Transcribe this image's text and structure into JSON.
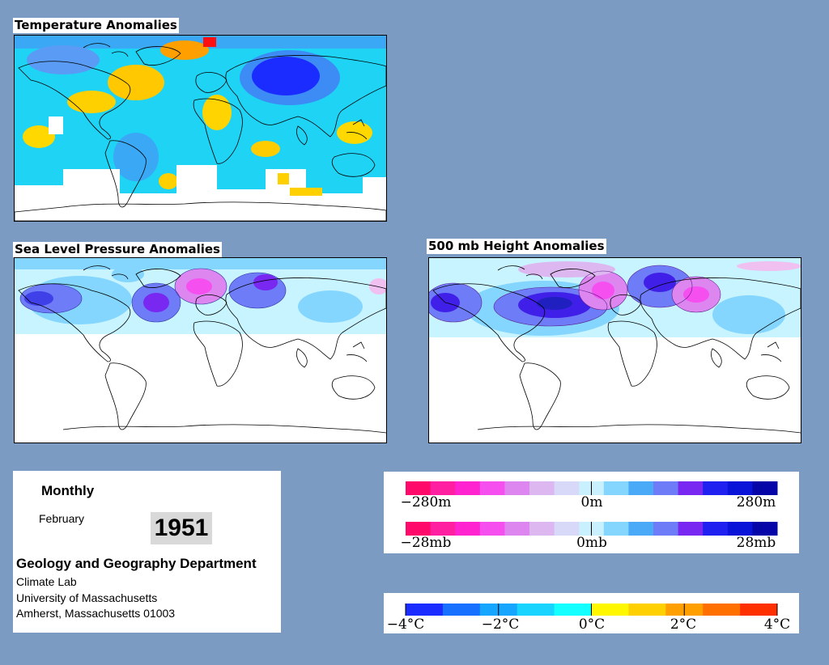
{
  "panels": {
    "temperature": {
      "title": "Temperature Anomalies"
    },
    "slp": {
      "title": "Sea Level Pressure Anomalies"
    },
    "height500": {
      "title": "500 mb Height Anomalies"
    }
  },
  "info": {
    "period": "Monthly",
    "month": "February",
    "year": "1951",
    "department": "Geology and Geography Department",
    "lines": [
      "Climate Lab",
      "University of Massachusetts",
      "Amherst, Massachusetts 01003"
    ]
  },
  "legends": {
    "height": {
      "min_label": "−280m",
      "mid_label": "0m",
      "max_label": "280m"
    },
    "pressure": {
      "min_label": "−28mb",
      "mid_label": "0mb",
      "max_label": "28mb"
    },
    "temperature": {
      "labels": [
        "−4°C",
        "−2°C",
        "0°C",
        "2°C",
        "4°C"
      ]
    }
  },
  "colors": {
    "background": "#7b9bc2",
    "anomaly_scale": [
      "#ff0a6a",
      "#ff1fa0",
      "#ff24cf",
      "#f54ff0",
      "#dd86f0",
      "#ddb8f0",
      "#d8d8f8",
      "#c8f0ff",
      "#84d6ff",
      "#4aaaf8",
      "#6e7cf8",
      "#7828f0",
      "#2020f0",
      "#0a14d8",
      "#0505a8"
    ],
    "temperature_scale": [
      "#1a2cff",
      "#1770ff",
      "#16a6ff",
      "#18d4ff",
      "#14ffff",
      "#fff700",
      "#ffd000",
      "#ffa000",
      "#ff7000",
      "#ff3000"
    ]
  }
}
